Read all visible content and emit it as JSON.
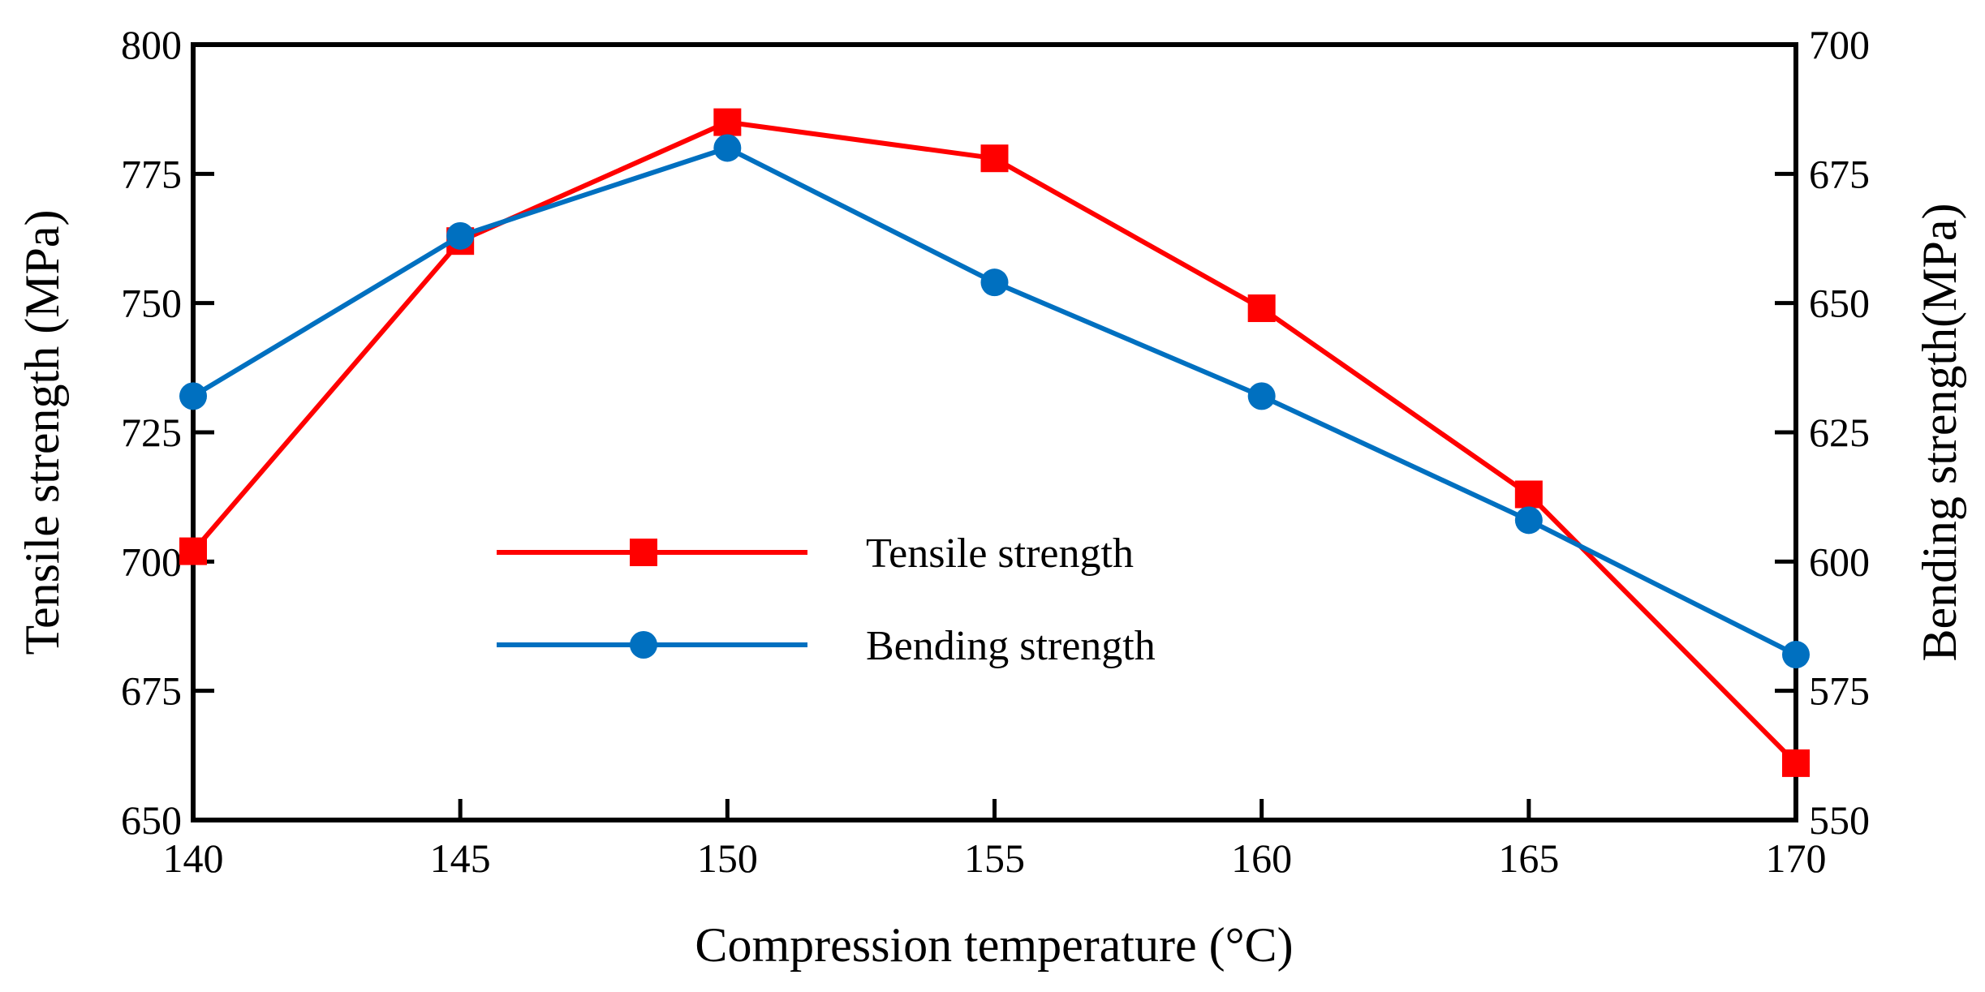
{
  "chart_data": {
    "type": "line",
    "title": "",
    "xlabel": "Compression temperature (°C)",
    "ylabel_left": "Tensile strength (MPa)",
    "ylabel_right": "Bending strength(MPa)",
    "x": [
      140,
      145,
      150,
      155,
      160,
      165,
      170
    ],
    "xlim": [
      140,
      170
    ],
    "xticks": [
      "140",
      "145",
      "150",
      "155",
      "160",
      "165",
      "170"
    ],
    "ylim_left": [
      650,
      800
    ],
    "yticks_left": [
      "650",
      "675",
      "700",
      "725",
      "750",
      "775",
      "800"
    ],
    "ylim_right": [
      550,
      700
    ],
    "yticks_right": [
      "550",
      "575",
      "600",
      "625",
      "650",
      "675",
      "700"
    ],
    "grid": false,
    "legend_position": "center",
    "series": [
      {
        "name": "Tensile strength",
        "axis": "left",
        "marker": "square",
        "color": "#ff0000",
        "values": [
          702,
          762,
          785,
          778,
          749,
          713,
          661
        ]
      },
      {
        "name": "Bending strength",
        "axis": "right",
        "marker": "circle",
        "color": "#0070c0",
        "values": [
          632,
          663,
          680,
          654,
          632,
          608,
          582
        ]
      }
    ]
  }
}
